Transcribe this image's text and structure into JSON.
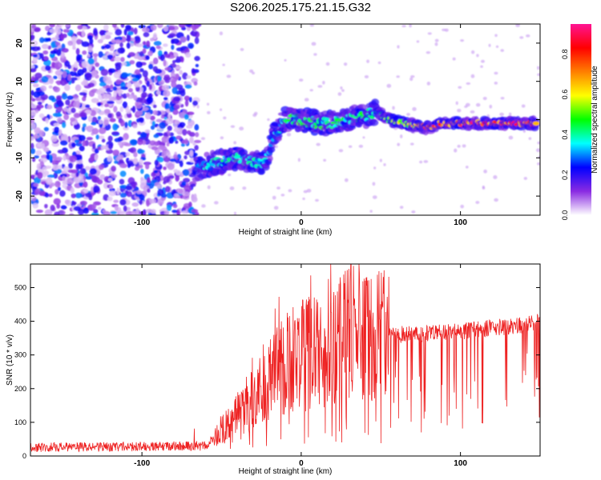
{
  "title": "S206.2025.175.21.15.G32",
  "chart_data": [
    {
      "type": "heatmap",
      "xlabel": "Height of straight line (km)",
      "ylabel": "Frequency (Hz)",
      "xlim": [
        -170,
        150
      ],
      "ylim": [
        -25,
        25
      ],
      "xticks": [
        -100,
        0,
        100
      ],
      "yticks": [
        -20,
        -10,
        0,
        10,
        20
      ],
      "colorbar": {
        "label": "Normalized spectral amplitude",
        "range": [
          0.0,
          0.95
        ],
        "ticks": [
          0.0,
          0.2,
          0.4,
          0.6,
          0.8
        ],
        "colors": [
          "#ffffff",
          "#8a2be2",
          "#0000ff",
          "#00ffff",
          "#00ff00",
          "#ffff00",
          "#ff7f00",
          "#ff0000",
          "#ff1493"
        ]
      },
      "trace": {
        "x": [
          -170,
          -67,
          -60,
          -50,
          -40,
          -30,
          -22,
          -18,
          -10,
          0,
          10,
          20,
          30,
          40,
          47,
          55,
          65,
          75,
          82,
          88,
          95,
          105,
          115,
          125,
          135,
          148
        ],
        "frequency": [
          null,
          -13,
          -12,
          -11,
          -10,
          -11,
          -11,
          -5,
          0,
          0,
          -1,
          -1,
          0,
          1,
          2,
          0,
          -1,
          -2,
          -2,
          -1,
          -1,
          -1,
          -1,
          -1,
          -1,
          -1
        ],
        "amplitude": [
          0.15,
          0.3,
          0.35,
          0.4,
          0.4,
          0.4,
          0.35,
          0.3,
          0.45,
          0.5,
          0.45,
          0.45,
          0.45,
          0.5,
          0.4,
          0.55,
          0.6,
          0.7,
          0.85,
          0.75,
          0.8,
          0.85,
          0.85,
          0.85,
          0.85,
          0.85
        ]
      }
    },
    {
      "type": "line",
      "xlabel": "Height of straight line (km)",
      "ylabel": "SNR (10 * v/v)",
      "xlim": [
        -170,
        150
      ],
      "ylim": [
        0,
        570
      ],
      "xticks": [
        -100,
        0,
        100
      ],
      "yticks": [
        0,
        100,
        200,
        300,
        400,
        500
      ],
      "color": "#ee2222",
      "trend_x": [
        -170,
        -60,
        -40,
        -20,
        -10,
        0,
        10,
        20,
        25,
        40,
        55,
        60,
        100,
        140,
        150
      ],
      "trend_y": [
        25,
        30,
        120,
        220,
        280,
        300,
        310,
        330,
        360,
        370,
        380,
        360,
        370,
        390,
        400
      ]
    }
  ]
}
